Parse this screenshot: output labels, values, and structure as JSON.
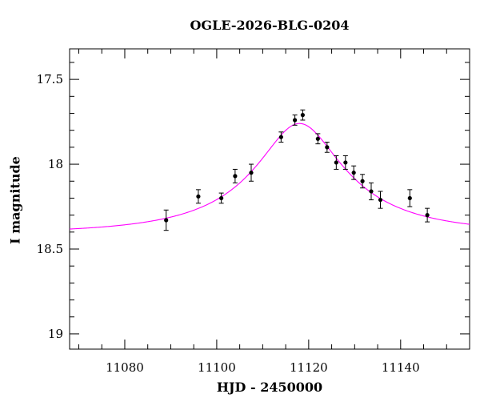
{
  "chart_data": {
    "type": "scatter",
    "title": "OGLE-2026-BLG-0204",
    "xlabel": "HJD - 2450000",
    "ylabel": "I magnitude",
    "xlim": [
      11068,
      11155
    ],
    "ylim": [
      19.09,
      17.32
    ],
    "y_inverted": true,
    "x_ticks": [
      11080,
      11100,
      11120,
      11140
    ],
    "x_tick_labels": [
      "11080",
      "11100",
      "11120",
      "11140"
    ],
    "y_ticks": [
      17.5,
      18.0,
      18.5,
      19.0
    ],
    "y_tick_labels": [
      "17.5",
      "18",
      "18.5",
      "19"
    ],
    "grid": false,
    "series": [
      {
        "kind": "points_with_errorbars",
        "color": "#000000",
        "x": [
          11089.0,
          11096.0,
          11101.0,
          11104.0,
          11107.5,
          11114.0,
          11117.0,
          11118.7,
          11122.0,
          11124.0,
          11126.0,
          11128.0,
          11129.8,
          11131.7,
          11133.6,
          11135.6,
          11142.0,
          11145.8
        ],
        "y": [
          18.33,
          18.19,
          18.2,
          18.07,
          18.05,
          17.84,
          17.74,
          17.71,
          17.85,
          17.9,
          17.99,
          17.99,
          18.05,
          18.1,
          18.16,
          18.21,
          18.2,
          18.3
        ],
        "err": [
          0.06,
          0.04,
          0.03,
          0.04,
          0.05,
          0.03,
          0.03,
          0.03,
          0.03,
          0.03,
          0.04,
          0.04,
          0.04,
          0.04,
          0.05,
          0.05,
          0.05,
          0.04
        ]
      },
      {
        "kind": "model_curve",
        "color": "#ff00ff",
        "model": {
          "t0": 11118.0,
          "tE": 28.0,
          "u0": 0.34,
          "I_base": 18.407,
          "I_peak": 17.76
        }
      }
    ]
  }
}
